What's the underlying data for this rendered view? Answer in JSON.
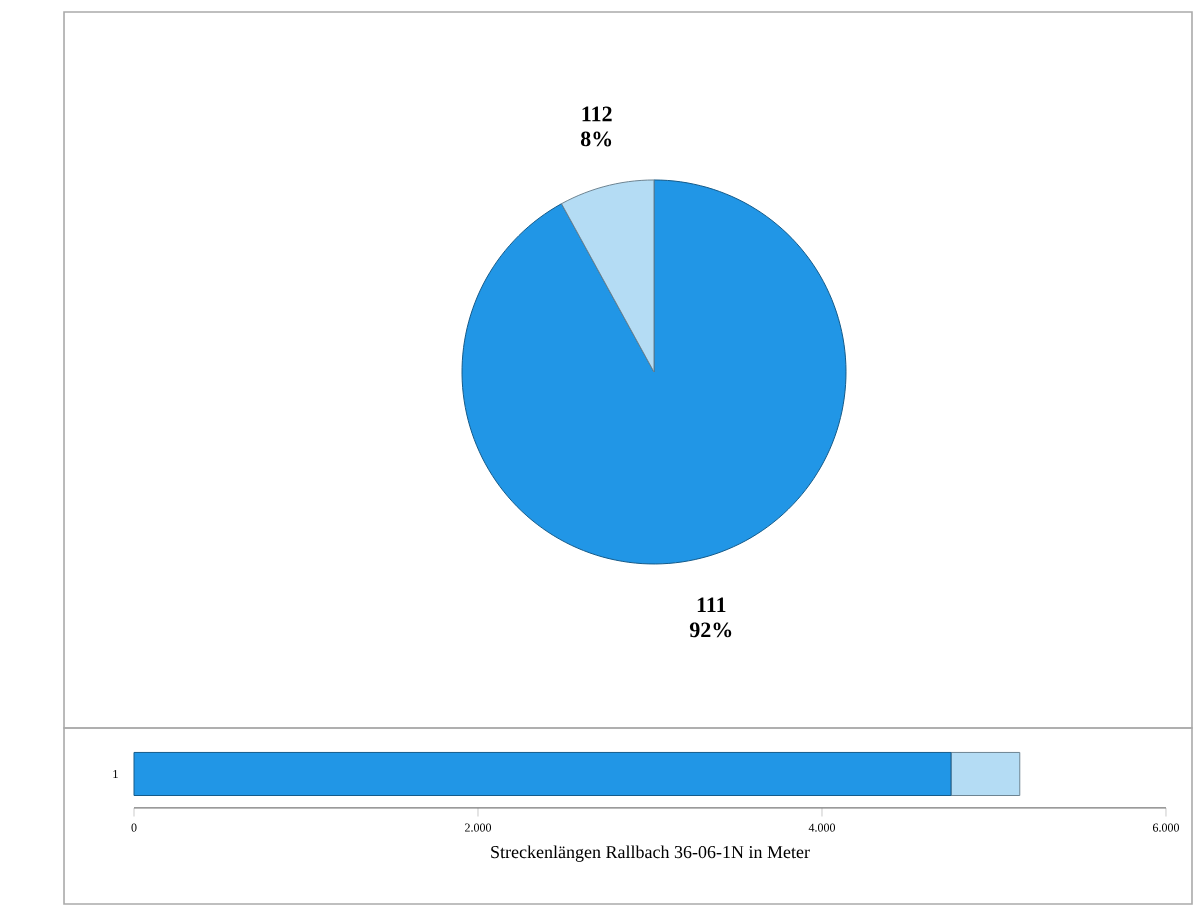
{
  "chart_data": [
    {
      "type": "pie",
      "categories": [
        "111",
        "112"
      ],
      "values": [
        92,
        8
      ],
      "colors": [
        "#2196e6",
        "#b4dcf4"
      ],
      "value_labels": [
        "92%",
        "8%"
      ]
    },
    {
      "type": "bar",
      "orientation": "horizontal",
      "stacked": true,
      "categories": [
        "1"
      ],
      "series": [
        {
          "color": "#2196e6",
          "values": [
            4750
          ]
        },
        {
          "color": "#b4dcf4",
          "values": [
            400
          ]
        }
      ],
      "xlim": [
        0,
        6000
      ],
      "xticks": [
        0,
        {
          "value": 2000,
          "label": "2.000"
        },
        {
          "value": 4000,
          "label": "4.000"
        },
        {
          "value": 6000,
          "label": "6.000"
        }
      ],
      "xlabel": "Streckenlängen Rallbach 36-06-1N in Meter"
    }
  ]
}
